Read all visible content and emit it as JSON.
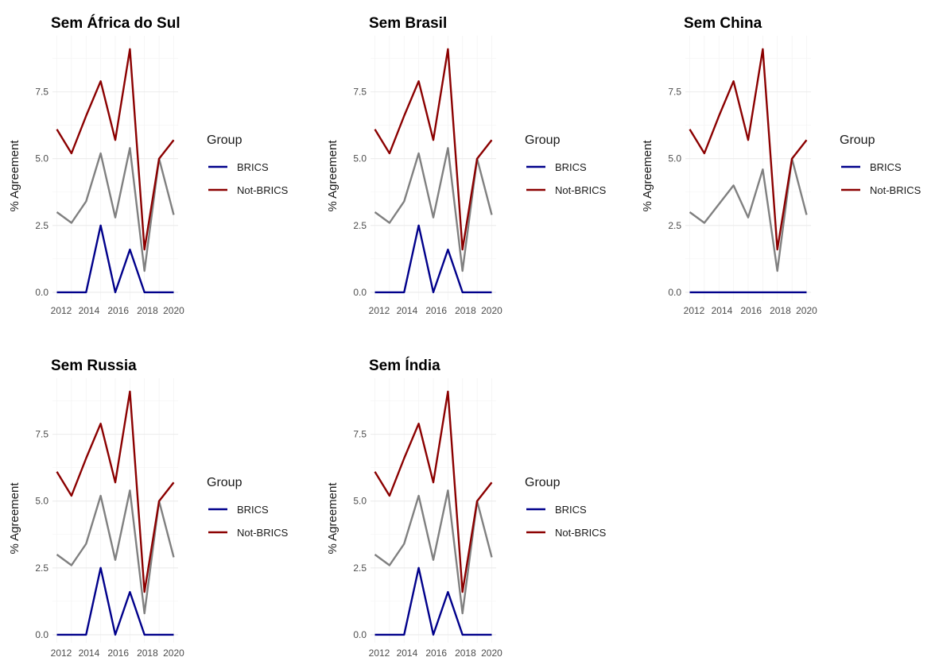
{
  "chart_data": [
    {
      "type": "line",
      "title": "Sem África do Sul",
      "ylabel": "% Agreement",
      "xlabel": "",
      "x": [
        2012,
        2013,
        2014,
        2015,
        2016,
        2017,
        2018,
        2019,
        2020
      ],
      "x_tick_labels": [
        "2012",
        "2014",
        "2016",
        "2018",
        "2020"
      ],
      "y_tick_labels": [
        "0.0",
        "2.5",
        "5.0",
        "7.5"
      ],
      "ylim": [
        -0.3,
        9.6
      ],
      "series": [
        {
          "name": "BRICS",
          "color": "#00008b",
          "values": [
            0,
            0,
            0,
            2.5,
            0,
            1.6,
            0,
            0,
            0
          ]
        },
        {
          "name": "Not-BRICS",
          "color": "#8b0000",
          "values": [
            6.1,
            5.2,
            6.6,
            7.9,
            5.7,
            9.1,
            1.6,
            5.0,
            5.7
          ]
        },
        {
          "color": "#808080",
          "values": [
            3.0,
            2.6,
            3.4,
            5.2,
            2.8,
            5.4,
            0.8,
            5.0,
            2.9
          ]
        }
      ],
      "legend": {
        "title": "Group",
        "entries": [
          "BRICS",
          "Not-BRICS"
        ],
        "position": "right"
      }
    },
    {
      "type": "line",
      "title": "Sem Brasil",
      "ylabel": "% Agreement",
      "xlabel": "",
      "x": [
        2012,
        2013,
        2014,
        2015,
        2016,
        2017,
        2018,
        2019,
        2020
      ],
      "x_tick_labels": [
        "2012",
        "2014",
        "2016",
        "2018",
        "2020"
      ],
      "y_tick_labels": [
        "0.0",
        "2.5",
        "5.0",
        "7.5"
      ],
      "ylim": [
        -0.3,
        9.6
      ],
      "series": [
        {
          "name": "BRICS",
          "color": "#00008b",
          "values": [
            0,
            0,
            0,
            2.5,
            0,
            1.6,
            0,
            0,
            0
          ]
        },
        {
          "name": "Not-BRICS",
          "color": "#8b0000",
          "values": [
            6.1,
            5.2,
            6.6,
            7.9,
            5.7,
            9.1,
            1.6,
            5.0,
            5.7
          ]
        },
        {
          "color": "#808080",
          "values": [
            3.0,
            2.6,
            3.4,
            5.2,
            2.8,
            5.4,
            0.8,
            5.0,
            2.9
          ]
        }
      ],
      "legend": {
        "title": "Group",
        "entries": [
          "BRICS",
          "Not-BRICS"
        ],
        "position": "right"
      }
    },
    {
      "type": "line",
      "title": "Sem China",
      "ylabel": "% Agreement",
      "xlabel": "",
      "x": [
        2012,
        2013,
        2014,
        2015,
        2016,
        2017,
        2018,
        2019,
        2020
      ],
      "x_tick_labels": [
        "2012",
        "2014",
        "2016",
        "2018",
        "2020"
      ],
      "y_tick_labels": [
        "0.0",
        "2.5",
        "5.0",
        "7.5"
      ],
      "ylim": [
        -0.3,
        9.6
      ],
      "series": [
        {
          "name": "BRICS",
          "color": "#00008b",
          "values": [
            0,
            0,
            0,
            0,
            0,
            0,
            0,
            0,
            0
          ]
        },
        {
          "name": "Not-BRICS",
          "color": "#8b0000",
          "values": [
            6.1,
            5.2,
            6.6,
            7.9,
            5.7,
            9.1,
            1.6,
            5.0,
            5.7
          ]
        },
        {
          "color": "#808080",
          "values": [
            3.0,
            2.6,
            3.3,
            4.0,
            2.8,
            4.6,
            0.8,
            5.0,
            2.9
          ]
        }
      ],
      "legend": {
        "title": "Group",
        "entries": [
          "BRICS",
          "Not-BRICS"
        ],
        "position": "right"
      }
    },
    {
      "type": "line",
      "title": "Sem Russia",
      "ylabel": "% Agreement",
      "xlabel": "",
      "x": [
        2012,
        2013,
        2014,
        2015,
        2016,
        2017,
        2018,
        2019,
        2020
      ],
      "x_tick_labels": [
        "2012",
        "2014",
        "2016",
        "2018",
        "2020"
      ],
      "y_tick_labels": [
        "0.0",
        "2.5",
        "5.0",
        "7.5"
      ],
      "ylim": [
        -0.3,
        9.6
      ],
      "series": [
        {
          "name": "BRICS",
          "color": "#00008b",
          "values": [
            0,
            0,
            0,
            2.5,
            0,
            1.6,
            0,
            0,
            0
          ]
        },
        {
          "name": "Not-BRICS",
          "color": "#8b0000",
          "values": [
            6.1,
            5.2,
            6.6,
            7.9,
            5.7,
            9.1,
            1.6,
            5.0,
            5.7
          ]
        },
        {
          "color": "#808080",
          "values": [
            3.0,
            2.6,
            3.4,
            5.2,
            2.8,
            5.4,
            0.8,
            5.0,
            2.9
          ]
        }
      ],
      "legend": {
        "title": "Group",
        "entries": [
          "BRICS",
          "Not-BRICS"
        ],
        "position": "right"
      }
    },
    {
      "type": "line",
      "title": "Sem Índia",
      "ylabel": "% Agreement",
      "xlabel": "",
      "x": [
        2012,
        2013,
        2014,
        2015,
        2016,
        2017,
        2018,
        2019,
        2020
      ],
      "x_tick_labels": [
        "2012",
        "2014",
        "2016",
        "2018",
        "2020"
      ],
      "y_tick_labels": [
        "0.0",
        "2.5",
        "5.0",
        "7.5"
      ],
      "ylim": [
        -0.3,
        9.6
      ],
      "series": [
        {
          "name": "BRICS",
          "color": "#00008b",
          "values": [
            0,
            0,
            0,
            2.5,
            0,
            1.6,
            0,
            0,
            0
          ]
        },
        {
          "name": "Not-BRICS",
          "color": "#8b0000",
          "values": [
            6.1,
            5.2,
            6.6,
            7.9,
            5.7,
            9.1,
            1.6,
            5.0,
            5.7
          ]
        },
        {
          "color": "#808080",
          "values": [
            3.0,
            2.6,
            3.4,
            5.2,
            2.8,
            5.4,
            0.8,
            5.0,
            2.9
          ]
        }
      ],
      "legend": {
        "title": "Group",
        "entries": [
          "BRICS",
          "Not-BRICS"
        ],
        "position": "right"
      }
    }
  ]
}
